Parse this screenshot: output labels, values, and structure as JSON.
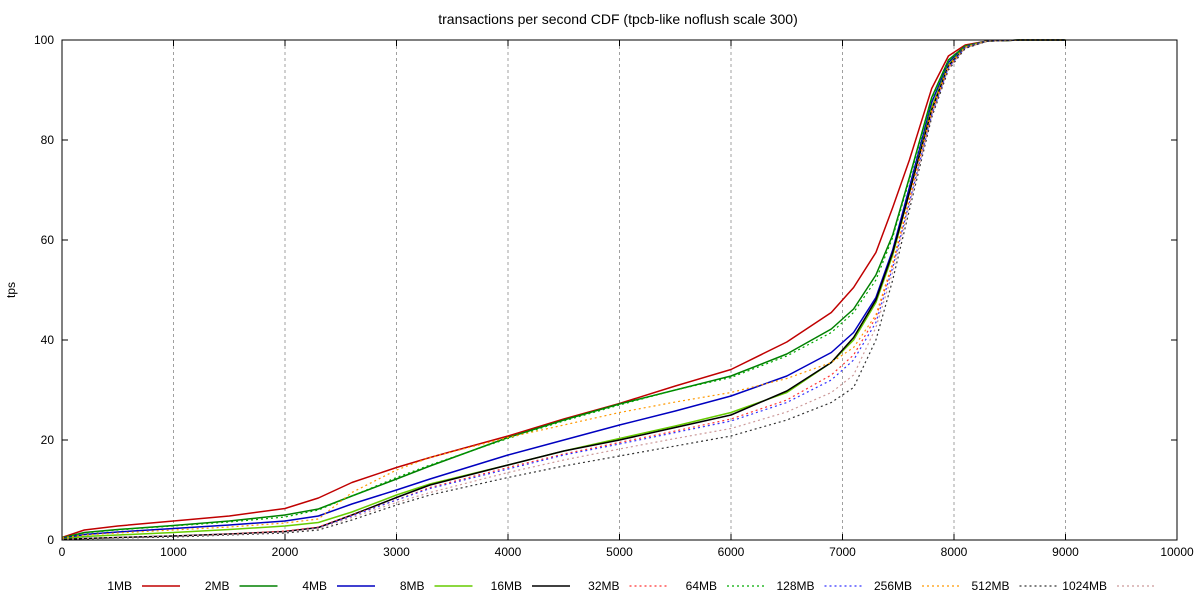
{
  "chart_data": {
    "type": "line",
    "title": "transactions per second CDF (tpcb-like noflush scale 300)",
    "xlabel": "",
    "ylabel": "tps",
    "xlim": [
      0,
      10000
    ],
    "ylim": [
      0,
      100
    ],
    "xticks": [
      0,
      1000,
      2000,
      3000,
      4000,
      5000,
      6000,
      7000,
      8000,
      9000,
      10000
    ],
    "yticks": [
      0,
      20,
      40,
      60,
      80,
      100
    ],
    "grid": "vertical dashed",
    "legend_position": "bottom",
    "series": [
      {
        "name": "1MB",
        "color": "#c00000",
        "dash": "solid",
        "x": [
          0,
          200,
          500,
          1000,
          1500,
          2000,
          2300,
          2600,
          3000,
          3300,
          4000,
          4500,
          5000,
          5500,
          6000,
          6500,
          6900,
          7100,
          7300,
          7450,
          7600,
          7800,
          7950,
          8100,
          8300,
          8600,
          9000
        ],
        "y": [
          0.5,
          2,
          2.8,
          3.8,
          4.8,
          6.3,
          8.4,
          11.5,
          14.5,
          16.5,
          20.8,
          24.2,
          27.3,
          30.8,
          34.1,
          39.6,
          45.5,
          50.5,
          57.5,
          66.5,
          76,
          90.3,
          96.8,
          99,
          99.8,
          100,
          100
        ]
      },
      {
        "name": "2MB",
        "color": "#008000",
        "dash": "solid",
        "x": [
          0,
          200,
          500,
          1000,
          1500,
          2000,
          2300,
          2600,
          3000,
          3300,
          4000,
          4500,
          5000,
          5500,
          6000,
          6500,
          6900,
          7100,
          7300,
          7450,
          7600,
          7800,
          7950,
          8100,
          8300,
          8600,
          9000
        ],
        "y": [
          0.4,
          1.5,
          2.1,
          2.9,
          3.8,
          5,
          6.2,
          8.8,
          12.2,
          14.8,
          20.5,
          24,
          27.2,
          30,
          32.8,
          37.2,
          42.2,
          46.2,
          53,
          61,
          72.5,
          88.5,
          96,
          98.8,
          99.8,
          100,
          100
        ]
      },
      {
        "name": "4MB",
        "color": "#0000c0",
        "dash": "solid",
        "x": [
          0,
          200,
          500,
          1000,
          1500,
          2000,
          2300,
          2600,
          3000,
          3300,
          4000,
          4500,
          5000,
          5500,
          6000,
          6500,
          6900,
          7100,
          7300,
          7450,
          7600,
          7800,
          7950,
          8100,
          8300,
          8600,
          9000
        ],
        "y": [
          0.3,
          1.1,
          1.6,
          2.3,
          3,
          3.8,
          4.8,
          7.2,
          10,
          12.2,
          17,
          20,
          23,
          25.8,
          28.8,
          32.8,
          37.5,
          41.5,
          48.5,
          58,
          70.5,
          87.5,
          95.5,
          98.7,
          99.8,
          100,
          100
        ]
      },
      {
        "name": "8MB",
        "color": "#66cc00",
        "dash": "solid",
        "x": [
          0,
          200,
          500,
          1000,
          1500,
          2000,
          2300,
          2600,
          3000,
          3300,
          4000,
          4500,
          5000,
          5500,
          6000,
          6500,
          6900,
          7100,
          7300,
          7450,
          7600,
          7800,
          7950,
          8100,
          8300,
          8600,
          9000
        ],
        "y": [
          0.2,
          0.7,
          1,
          1.5,
          2.1,
          2.8,
          3.5,
          5.6,
          9,
          11.2,
          15,
          17.8,
          20.3,
          22.8,
          25.5,
          29.5,
          35.5,
          40,
          47.5,
          57,
          69.5,
          86.5,
          95,
          98.6,
          99.8,
          100,
          100
        ]
      },
      {
        "name": "16MB",
        "color": "#000000",
        "dash": "solid",
        "x": [
          0,
          200,
          500,
          1000,
          1500,
          2000,
          2300,
          2600,
          3000,
          3300,
          4000,
          4500,
          5000,
          5500,
          6000,
          6500,
          6900,
          7100,
          7300,
          7450,
          7600,
          7800,
          7950,
          8100,
          8300,
          8600,
          9000
        ],
        "y": [
          0.1,
          0.3,
          0.5,
          0.8,
          1.2,
          1.7,
          2.5,
          5,
          8.5,
          11,
          15,
          17.8,
          20,
          22.5,
          25,
          29.8,
          35.5,
          40.5,
          48,
          57.5,
          69.5,
          86,
          94.8,
          98.5,
          99.8,
          100,
          100
        ]
      },
      {
        "name": "32MB",
        "color": "#ff3333",
        "dash": "dotted",
        "x": [
          0,
          200,
          500,
          1000,
          1500,
          2000,
          2300,
          2600,
          3000,
          3300,
          4000,
          4500,
          5000,
          5500,
          6000,
          6500,
          6900,
          7100,
          7300,
          7450,
          7600,
          7800,
          7950,
          8100,
          8300,
          8600,
          9000
        ],
        "y": [
          0.1,
          0.3,
          0.5,
          0.8,
          1.2,
          1.8,
          2.6,
          5,
          8,
          10.5,
          14.5,
          17.2,
          19.5,
          21.8,
          24.2,
          28,
          33,
          37,
          44.5,
          55,
          68,
          85.5,
          94.5,
          98.5,
          99.8,
          100,
          100
        ]
      },
      {
        "name": "64MB",
        "color": "#00aa00",
        "dash": "dotted",
        "x": [
          0,
          200,
          500,
          1000,
          1500,
          2000,
          2300,
          2600,
          3000,
          3300,
          4000,
          4500,
          5000,
          5500,
          6000,
          6500,
          6900,
          7100,
          7300,
          7450,
          7600,
          7800,
          7950,
          8100,
          8300,
          8600,
          9000
        ],
        "y": [
          0.5,
          1.4,
          2,
          2.8,
          3.6,
          4.6,
          6,
          8.8,
          12.5,
          15,
          20.3,
          23.8,
          27,
          30,
          32.5,
          36.8,
          41.5,
          45.5,
          52,
          60.5,
          72,
          88,
          95.8,
          98.8,
          99.8,
          100,
          100
        ]
      },
      {
        "name": "128MB",
        "color": "#3333ff",
        "dash": "dotted",
        "x": [
          0,
          200,
          500,
          1000,
          1500,
          2000,
          2300,
          2600,
          3000,
          3300,
          4000,
          4500,
          5000,
          5500,
          6000,
          6500,
          6900,
          7100,
          7300,
          7450,
          7600,
          7800,
          7950,
          8100,
          8300,
          8600,
          9000
        ],
        "y": [
          0.1,
          0.3,
          0.5,
          0.8,
          1.1,
          1.6,
          2.4,
          4.8,
          8,
          10.3,
          14.2,
          17,
          19.2,
          21.5,
          23.8,
          27.5,
          32,
          36,
          43.5,
          54.5,
          67.5,
          85,
          94.5,
          98.5,
          99.8,
          100,
          100
        ]
      },
      {
        "name": "256MB",
        "color": "#ff9900",
        "dash": "dotted",
        "x": [
          0,
          200,
          500,
          1000,
          1500,
          2000,
          2300,
          2600,
          3000,
          3300,
          4000,
          4500,
          5000,
          5500,
          6000,
          6500,
          6900,
          7100,
          7300,
          7450,
          7600,
          7800,
          7950,
          8100,
          8300,
          8600,
          9000
        ],
        "y": [
          0.4,
          1,
          1.4,
          2,
          2.6,
          3.4,
          4.2,
          9.5,
          14,
          16.5,
          20.5,
          23,
          25.5,
          27.6,
          29.5,
          32.3,
          35.5,
          38.5,
          45,
          55.5,
          68.5,
          86,
          94.8,
          98.6,
          99.8,
          100,
          100
        ]
      },
      {
        "name": "512MB",
        "color": "#333333",
        "dash": "dotted",
        "x": [
          0,
          200,
          500,
          1000,
          1500,
          2000,
          2300,
          2600,
          3000,
          3300,
          4000,
          4500,
          5000,
          5500,
          6000,
          6500,
          6900,
          7100,
          7300,
          7450,
          7600,
          7800,
          7950,
          8100,
          8300,
          8600,
          9000
        ],
        "y": [
          0.1,
          0.2,
          0.4,
          0.6,
          1,
          1.4,
          2,
          4,
          7,
          9,
          12.5,
          14.8,
          16.8,
          18.8,
          20.8,
          24,
          27.5,
          30.5,
          40,
          52,
          66,
          84.5,
          94,
          98.3,
          99.8,
          100,
          100
        ]
      },
      {
        "name": "1024MB",
        "color": "#cc9999",
        "dash": "dotted",
        "x": [
          0,
          200,
          500,
          1000,
          1500,
          2000,
          2300,
          2600,
          3000,
          3300,
          4000,
          4500,
          5000,
          5500,
          6000,
          6500,
          6900,
          7100,
          7300,
          7450,
          7600,
          7800,
          7950,
          8100,
          8300,
          8600,
          9000
        ],
        "y": [
          0.1,
          0.3,
          0.5,
          0.8,
          1.1,
          1.6,
          2.3,
          4.5,
          7.5,
          9.5,
          13.5,
          16,
          18.2,
          20.3,
          22.3,
          25.6,
          29.5,
          33,
          42.5,
          53.5,
          67,
          85,
          94.3,
          98.4,
          99.8,
          100,
          100
        ]
      }
    ]
  }
}
